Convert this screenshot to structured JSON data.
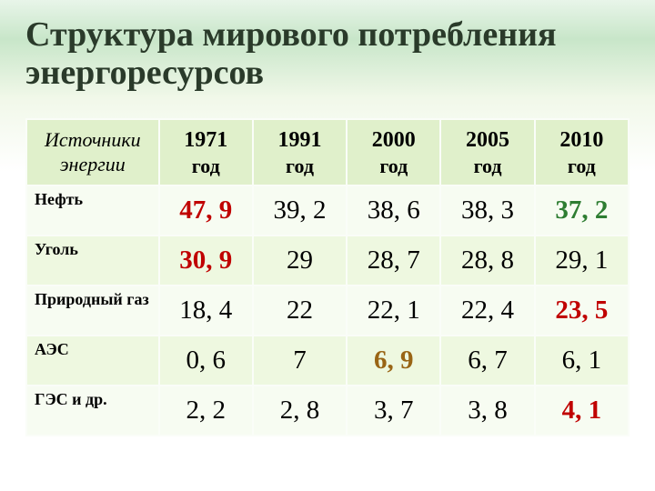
{
  "title": "Структура мирового потребления энергоресурсов",
  "header": {
    "rowlabel": "Источники энергии",
    "years": [
      "1971",
      "1991",
      "2000",
      "2005",
      "2010"
    ],
    "sub": "год"
  },
  "rows": [
    {
      "label": "Нефть",
      "cells": [
        "47, 9",
        "39, 2",
        "38, 6",
        "38, 3",
        "37, 2"
      ]
    },
    {
      "label": "Уголь",
      "cells": [
        "30, 9",
        "29",
        "28, 7",
        "28, 8",
        "29, 1"
      ]
    },
    {
      "label": "Природный газ",
      "cells": [
        "18, 4",
        "22",
        "22, 1",
        "22, 4",
        "23, 5"
      ]
    },
    {
      "label": "АЭС",
      "cells": [
        "0, 6",
        "7",
        "6, 9",
        "6, 7",
        "6, 1"
      ]
    },
    {
      "label": "ГЭС и др.",
      "cells": [
        "2, 2",
        "2, 8",
        "3, 7",
        "3, 8",
        "4, 1"
      ]
    }
  ],
  "highlight_colors": {
    "red": "#c00000",
    "green": "#2e7d32",
    "amber": "#996515"
  },
  "highlights": [
    {
      "r": 0,
      "c": 0,
      "color": "red"
    },
    {
      "r": 0,
      "c": 4,
      "color": "green"
    },
    {
      "r": 1,
      "c": 0,
      "color": "red"
    },
    {
      "r": 2,
      "c": 4,
      "color": "red"
    },
    {
      "r": 3,
      "c": 2,
      "color": "amber"
    },
    {
      "r": 4,
      "c": 4,
      "color": "red"
    }
  ]
}
